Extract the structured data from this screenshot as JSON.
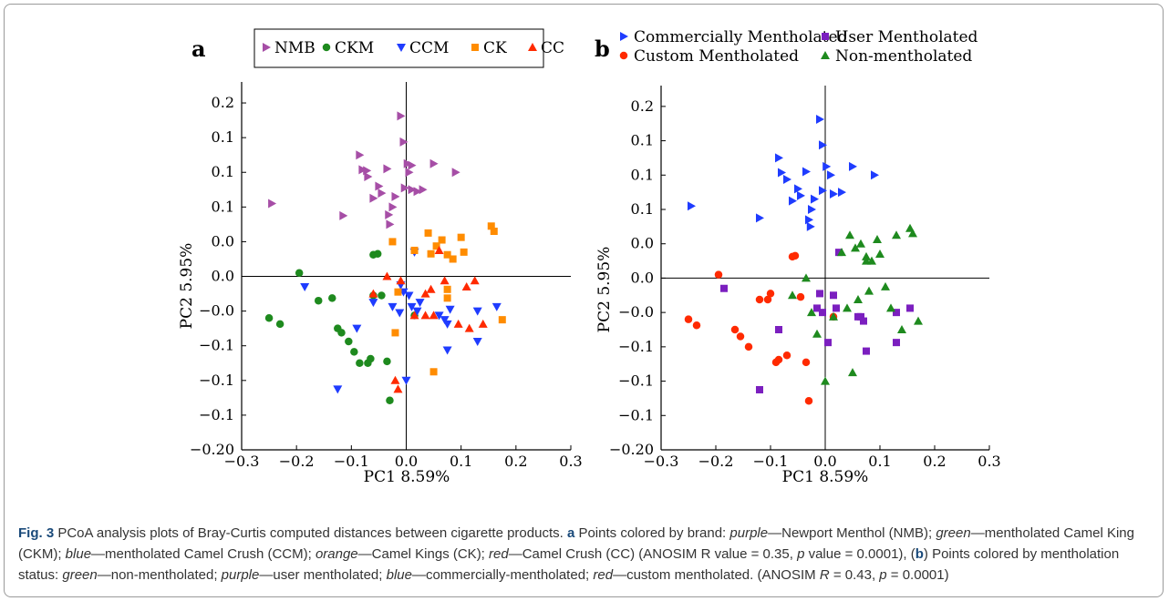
{
  "colors": {
    "purple": "#a64ea6",
    "green": "#1e8a1e",
    "blue": "#1f3cff",
    "orange": "#ff8c00",
    "red": "#ff2a00",
    "user_purple": "#7b1fbf"
  },
  "caption": {
    "fig_label": "Fig. 3",
    "text_1": " PCoA analysis plots of Bray-Curtis computed distances between cigarette products. ",
    "a": "a",
    "text_2": " Points colored by brand: ",
    "purple": "purple",
    "text_3": "—Newport Menthol (NMB); ",
    "green": "green",
    "text_4": "—mentholated Camel King (CKM); ",
    "blue": "blue",
    "text_5": "—mentholated Camel Crush (CCM); ",
    "orange": "orange",
    "text_6": "—Camel Kings (CK); ",
    "red": "red",
    "text_7": "—Camel Crush (CC) (ANOSIM R value = 0.35, ",
    "p1": "p",
    "text_8": " value = 0.0001), (",
    "b": "b",
    "text_9": ") Points colored by mentholation status: ",
    "green2": "green",
    "text_10": "—non-mentholated; ",
    "purple2": "purple",
    "text_11": "—user mentholated; ",
    "blue2": "blue",
    "text_12": "—commercially-mentholated; ",
    "red2": "red",
    "text_13": "—custom mentholated. (ANOSIM ",
    "R": "R",
    "text_14": " = 0.43, ",
    "p2": "p",
    "text_15": " = 0.0001)"
  },
  "chart_data": [
    {
      "type": "scatter",
      "panel_label": "a",
      "xlabel": "PC1 8.59%",
      "ylabel": "PC2  5.95%",
      "xlim": [
        -0.3,
        0.3
      ],
      "ylim": [
        -0.2,
        0.22
      ],
      "x_ticks": [
        -0.3,
        -0.2,
        -0.1,
        0.0,
        0.1,
        0.2,
        0.3
      ],
      "x_tick_labels": [
        "−0.3",
        "−0.2",
        "−0.1",
        "0.0",
        "0.1",
        "0.2",
        "0.3"
      ],
      "y_ticks": [
        -0.2,
        -0.16,
        -0.12,
        -0.08,
        -0.04,
        0.0,
        0.04,
        0.08,
        0.12,
        0.16,
        0.2
      ],
      "y_tick_labels": [
        "−0.20",
        "−0.1",
        "−0.1",
        "−0.1",
        "−0.0",
        "0.0",
        "0.0",
        "0.1",
        "0.1",
        "0.1",
        "0.2"
      ],
      "legend_position": "top-center",
      "series": [
        {
          "name": "NMB",
          "color": "#a64ea6",
          "marker": "triangle-right",
          "points": [
            [
              -0.245,
              0.084
            ],
            [
              -0.115,
              0.07
            ],
            [
              -0.085,
              0.14
            ],
            [
              -0.08,
              0.123
            ],
            [
              -0.072,
              0.122
            ],
            [
              -0.07,
              0.115
            ],
            [
              -0.06,
              0.09
            ],
            [
              -0.05,
              0.104
            ],
            [
              -0.045,
              0.096
            ],
            [
              -0.035,
              0.124
            ],
            [
              -0.032,
              0.071
            ],
            [
              -0.03,
              0.06
            ],
            [
              -0.025,
              0.08
            ],
            [
              -0.02,
              0.092
            ],
            [
              -0.01,
              0.185
            ],
            [
              -0.005,
              0.155
            ],
            [
              -0.003,
              0.102
            ],
            [
              0.002,
              0.13
            ],
            [
              0.005,
              0.12
            ],
            [
              0.01,
              0.128
            ],
            [
              0.01,
              0.1
            ],
            [
              0.02,
              0.098
            ],
            [
              0.03,
              0.1
            ],
            [
              0.05,
              0.13
            ],
            [
              0.09,
              0.12
            ]
          ]
        },
        {
          "name": "CKM",
          "color": "#1e8a1e",
          "marker": "circle",
          "points": [
            [
              -0.25,
              -0.048
            ],
            [
              -0.23,
              -0.055
            ],
            [
              -0.195,
              0.004
            ],
            [
              -0.16,
              -0.028
            ],
            [
              -0.135,
              -0.025
            ],
            [
              -0.125,
              -0.06
            ],
            [
              -0.118,
              -0.065
            ],
            [
              -0.105,
              -0.075
            ],
            [
              -0.095,
              -0.087
            ],
            [
              -0.085,
              -0.1
            ],
            [
              -0.07,
              -0.1
            ],
            [
              -0.065,
              -0.095
            ],
            [
              -0.06,
              -0.022
            ],
            [
              -0.06,
              0.025
            ],
            [
              -0.052,
              0.026
            ],
            [
              -0.045,
              -0.022
            ],
            [
              -0.035,
              -0.098
            ],
            [
              -0.03,
              -0.143
            ],
            [
              0.015,
              -0.045
            ]
          ]
        },
        {
          "name": "CCM",
          "color": "#1f3cff",
          "marker": "triangle-down",
          "points": [
            [
              -0.185,
              -0.012
            ],
            [
              -0.125,
              -0.13
            ],
            [
              -0.09,
              -0.06
            ],
            [
              -0.06,
              -0.03
            ],
            [
              -0.025,
              -0.035
            ],
            [
              -0.012,
              -0.042
            ],
            [
              -0.01,
              -0.01
            ],
            [
              -0.005,
              -0.018
            ],
            [
              0.0,
              -0.12
            ],
            [
              0.005,
              -0.022
            ],
            [
              0.01,
              -0.035
            ],
            [
              0.015,
              0.028
            ],
            [
              0.02,
              -0.04
            ],
            [
              0.025,
              -0.03
            ],
            [
              0.06,
              -0.045
            ],
            [
              0.07,
              -0.05
            ],
            [
              0.075,
              -0.055
            ],
            [
              0.075,
              -0.085
            ],
            [
              0.08,
              -0.038
            ],
            [
              0.13,
              -0.04
            ],
            [
              0.13,
              -0.075
            ],
            [
              0.165,
              -0.035
            ]
          ]
        },
        {
          "name": "CK",
          "color": "#ff8c00",
          "marker": "square",
          "points": [
            [
              -0.025,
              0.04
            ],
            [
              -0.02,
              -0.065
            ],
            [
              -0.015,
              -0.018
            ],
            [
              0.015,
              0.03
            ],
            [
              0.04,
              0.05
            ],
            [
              0.045,
              0.026
            ],
            [
              0.05,
              -0.11
            ],
            [
              0.055,
              0.035
            ],
            [
              0.065,
              0.042
            ],
            [
              0.075,
              0.025
            ],
            [
              0.075,
              -0.015
            ],
            [
              0.075,
              -0.025
            ],
            [
              0.085,
              0.02
            ],
            [
              0.1,
              0.045
            ],
            [
              0.105,
              0.028
            ],
            [
              0.155,
              0.058
            ],
            [
              0.16,
              0.052
            ],
            [
              0.175,
              -0.05
            ]
          ]
        },
        {
          "name": "CC",
          "color": "#ff2a00",
          "marker": "triangle-up",
          "points": [
            [
              -0.06,
              -0.02
            ],
            [
              -0.035,
              0.0
            ],
            [
              -0.02,
              -0.12
            ],
            [
              -0.015,
              -0.13
            ],
            [
              -0.01,
              -0.005
            ],
            [
              0.015,
              -0.045
            ],
            [
              0.035,
              -0.02
            ],
            [
              0.035,
              -0.045
            ],
            [
              0.045,
              -0.015
            ],
            [
              0.05,
              -0.045
            ],
            [
              0.06,
              0.03
            ],
            [
              0.07,
              -0.005
            ],
            [
              0.095,
              -0.055
            ],
            [
              0.11,
              -0.012
            ],
            [
              0.115,
              -0.06
            ],
            [
              0.125,
              -0.005
            ],
            [
              0.14,
              -0.055
            ]
          ]
        }
      ]
    },
    {
      "type": "scatter",
      "panel_label": "b",
      "xlabel": "PC1 8.59%",
      "ylabel": "PC2  5.95%",
      "xlim": [
        -0.3,
        0.3
      ],
      "ylim": [
        -0.2,
        0.22
      ],
      "x_ticks": [
        -0.3,
        -0.2,
        -0.1,
        0.0,
        0.1,
        0.2,
        0.3
      ],
      "x_tick_labels": [
        "−0.3",
        "−0.2",
        "−0.1",
        "0.0",
        "0.1",
        "0.2",
        "0.3"
      ],
      "y_ticks": [
        -0.2,
        -0.16,
        -0.12,
        -0.08,
        -0.04,
        0.0,
        0.04,
        0.08,
        0.12,
        0.16,
        0.2
      ],
      "y_tick_labels": [
        "−0.20",
        "−0.1",
        "−0.1",
        "−0.1",
        "−0.0",
        "0.0",
        "0.0",
        "0.1",
        "0.1",
        "0.1",
        "0.2"
      ],
      "legend_position": "top",
      "series": [
        {
          "name": "Commercially Mentholated",
          "color": "#1f3cff",
          "marker": "triangle-right",
          "points": [
            [
              -0.245,
              0.084
            ],
            [
              -0.12,
              0.07
            ],
            [
              -0.085,
              0.14
            ],
            [
              -0.08,
              0.123
            ],
            [
              -0.07,
              0.115
            ],
            [
              -0.06,
              0.09
            ],
            [
              -0.05,
              0.104
            ],
            [
              -0.045,
              0.096
            ],
            [
              -0.035,
              0.124
            ],
            [
              -0.03,
              0.068
            ],
            [
              -0.027,
              0.06
            ],
            [
              -0.025,
              0.08
            ],
            [
              -0.02,
              0.092
            ],
            [
              -0.01,
              0.185
            ],
            [
              -0.005,
              0.155
            ],
            [
              -0.005,
              0.102
            ],
            [
              0.002,
              0.13
            ],
            [
              0.01,
              0.12
            ],
            [
              0.015,
              0.098
            ],
            [
              0.03,
              0.1
            ],
            [
              0.05,
              0.13
            ],
            [
              0.09,
              0.12
            ]
          ]
        },
        {
          "name": "User Mentholated",
          "color": "#7b1fbf",
          "marker": "square",
          "points": [
            [
              -0.185,
              -0.012
            ],
            [
              -0.12,
              -0.13
            ],
            [
              -0.085,
              -0.06
            ],
            [
              -0.015,
              -0.035
            ],
            [
              -0.01,
              -0.018
            ],
            [
              -0.005,
              -0.04
            ],
            [
              0.005,
              -0.075
            ],
            [
              0.015,
              -0.02
            ],
            [
              0.02,
              -0.035
            ],
            [
              0.025,
              0.03
            ],
            [
              0.06,
              -0.045
            ],
            [
              0.065,
              -0.045
            ],
            [
              0.07,
              -0.05
            ],
            [
              0.075,
              -0.085
            ],
            [
              0.13,
              -0.04
            ],
            [
              0.13,
              -0.075
            ],
            [
              0.155,
              -0.035
            ]
          ]
        },
        {
          "name": "Custom Mentholated",
          "color": "#ff2a00",
          "marker": "circle",
          "points": [
            [
              -0.25,
              -0.048
            ],
            [
              -0.235,
              -0.055
            ],
            [
              -0.195,
              0.004
            ],
            [
              -0.165,
              -0.06
            ],
            [
              -0.155,
              -0.068
            ],
            [
              -0.14,
              -0.08
            ],
            [
              -0.12,
              -0.025
            ],
            [
              -0.105,
              -0.025
            ],
            [
              -0.1,
              -0.018
            ],
            [
              -0.09,
              -0.098
            ],
            [
              -0.085,
              -0.095
            ],
            [
              -0.07,
              -0.09
            ],
            [
              -0.06,
              0.025
            ],
            [
              -0.055,
              0.026
            ],
            [
              -0.045,
              -0.022
            ],
            [
              -0.035,
              -0.098
            ],
            [
              -0.03,
              -0.143
            ],
            [
              0.015,
              -0.045
            ]
          ]
        },
        {
          "name": "Non-mentholated",
          "color": "#1e8a1e",
          "marker": "triangle-up",
          "points": [
            [
              -0.06,
              -0.02
            ],
            [
              -0.035,
              0.0
            ],
            [
              -0.025,
              -0.04
            ],
            [
              -0.015,
              -0.065
            ],
            [
              0.0,
              -0.12
            ],
            [
              0.015,
              -0.045
            ],
            [
              0.03,
              0.03
            ],
            [
              0.04,
              -0.035
            ],
            [
              0.045,
              0.05
            ],
            [
              0.05,
              -0.11
            ],
            [
              0.055,
              0.035
            ],
            [
              0.06,
              -0.025
            ],
            [
              0.065,
              0.04
            ],
            [
              0.075,
              0.02
            ],
            [
              0.075,
              0.025
            ],
            [
              0.08,
              -0.015
            ],
            [
              0.085,
              0.02
            ],
            [
              0.095,
              0.045
            ],
            [
              0.1,
              0.028
            ],
            [
              0.11,
              -0.01
            ],
            [
              0.12,
              -0.035
            ],
            [
              0.13,
              0.05
            ],
            [
              0.14,
              -0.06
            ],
            [
              0.155,
              0.058
            ],
            [
              0.16,
              0.052
            ],
            [
              0.17,
              -0.05
            ]
          ]
        }
      ]
    }
  ]
}
